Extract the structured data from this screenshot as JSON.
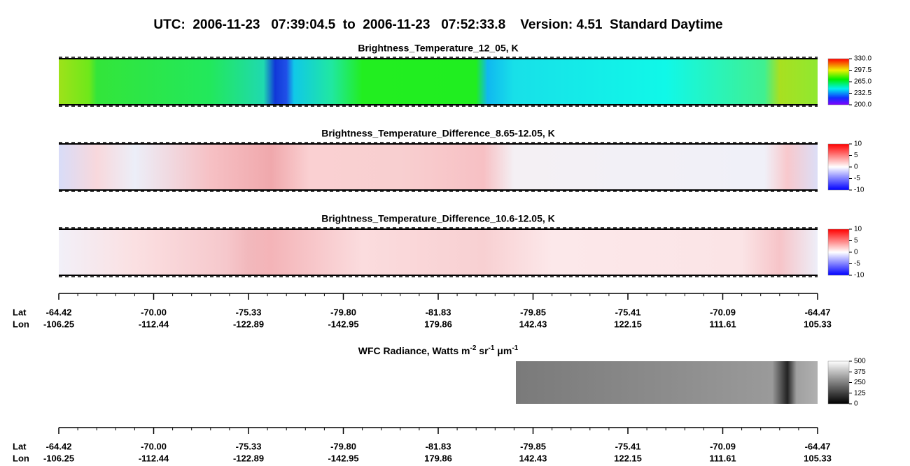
{
  "title": "UTC:  2006-11-23   07:39:04.5  to  2006-11-23   07:52:33.8    Version: 4.51  Standard Daytime",
  "panels": [
    {
      "title": "Brightness_Temperature_12_05, K",
      "colorbar_ticks": [
        "330.0",
        "297.5",
        "265.0",
        "232.5",
        "200.0"
      ]
    },
    {
      "title": "Brightness_Temperature_Difference_8.65-12.05, K",
      "colorbar_ticks": [
        "10",
        "5",
        "0",
        "-5",
        "-10"
      ]
    },
    {
      "title": "Brightness_Temperature_Difference_10.6-12.05, K",
      "colorbar_ticks": [
        "10",
        "5",
        "0",
        "-5",
        "-10"
      ]
    },
    {
      "title_parts": [
        "WFC Radiance, Watts m",
        "-2",
        " sr",
        "-1",
        " μm",
        "-1"
      ],
      "colorbar_ticks": [
        "500",
        "375",
        "250",
        "125",
        "0"
      ]
    }
  ],
  "axes": [
    {
      "lat_label": "Lat",
      "lon_label": "Lon",
      "lat": [
        "-64.42",
        "-70.00",
        "-75.33",
        "-79.80",
        "-81.83",
        "-79.85",
        "-75.41",
        "-70.09",
        "-64.47"
      ],
      "lon": [
        "-106.25",
        "-112.44",
        "-122.89",
        "-142.95",
        "179.86",
        "142.43",
        "122.15",
        "111.61",
        "105.33"
      ]
    },
    {
      "lat_label": "Lat",
      "lon_label": "Lon",
      "lat": [
        "-64.42",
        "-70.00",
        "-75.33",
        "-79.80",
        "-81.83",
        "-79.85",
        "-75.41",
        "-70.09",
        "-64.47"
      ],
      "lon": [
        "-106.25",
        "-112.44",
        "-122.89",
        "-142.95",
        "179.86",
        "142.43",
        "122.15",
        "111.61",
        "105.33"
      ]
    }
  ]
}
